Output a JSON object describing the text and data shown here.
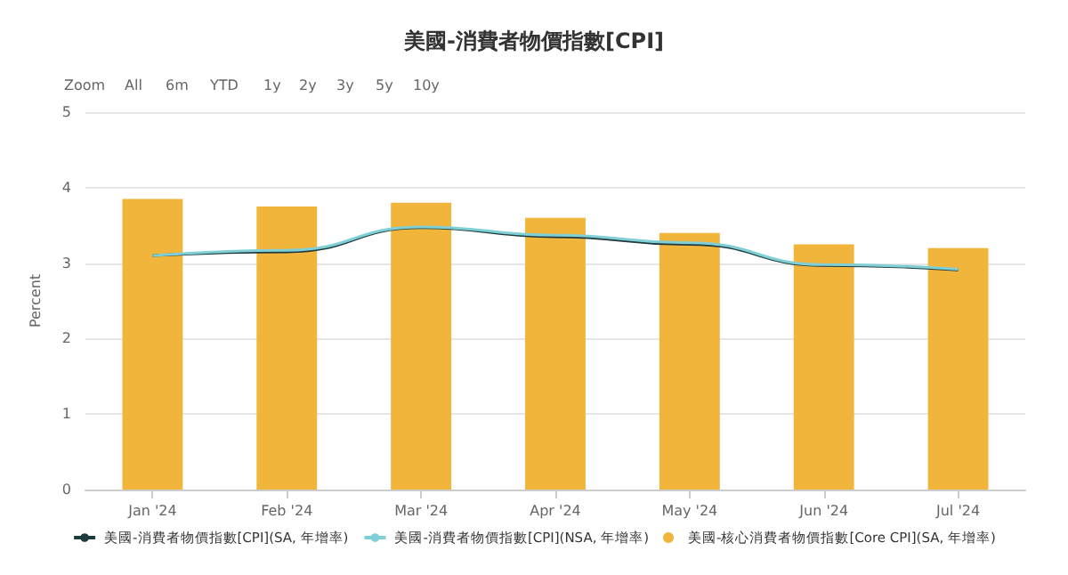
{
  "chart_data": {
    "type": "bar",
    "title": "美國-消費者物價指數[CPI]",
    "annotations": [
      "Zoom",
      "All",
      "6m",
      "YTD",
      "1y",
      "2y",
      "3y",
      "5y",
      "10y"
    ],
    "categories": [
      "Jan '24",
      "Feb '24",
      "Mar '24",
      "Apr '24",
      "May '24",
      "Jun '24",
      "Jul '24"
    ],
    "series": [
      {
        "name": "美國-消費者物價指數[CPI](SA, 年增率)",
        "type": "line",
        "color": "#1f3a3d",
        "values": [
          3.1,
          3.15,
          3.47,
          3.35,
          3.25,
          2.97,
          2.91
        ]
      },
      {
        "name": "美國-消費者物價指數[CPI](NSA, 年增率)",
        "type": "line",
        "color": "#7fcfd6",
        "values": [
          3.1,
          3.17,
          3.48,
          3.37,
          3.27,
          2.98,
          2.92
        ]
      },
      {
        "name": "美國-核心消費者物價指數[Core CPI](SA, 年增率)",
        "color": "#f2b53c",
        "values": [
          3.85,
          3.75,
          3.8,
          3.6,
          3.4,
          3.25,
          3.2
        ]
      }
    ],
    "ylabel": "Percent",
    "ylim": [
      0,
      5
    ],
    "yticks": [
      0,
      1,
      2,
      3,
      4,
      5
    ],
    "grid": "y",
    "legend": "bottom",
    "marker": "none"
  }
}
